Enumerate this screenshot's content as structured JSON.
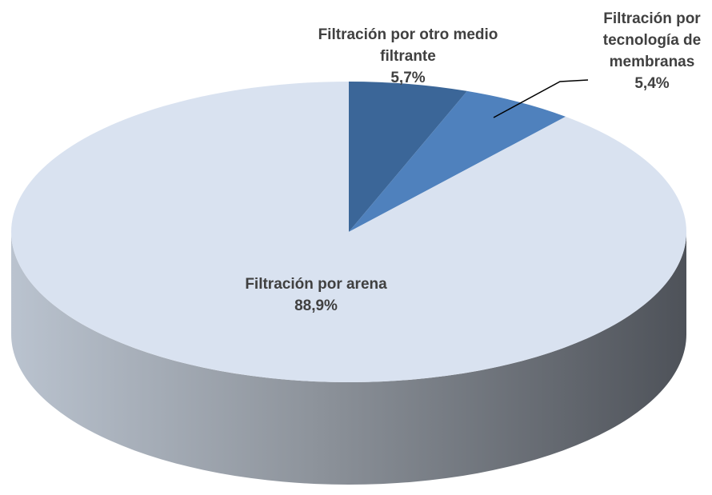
{
  "chart_data": {
    "type": "pie3d",
    "categories": [
      "Filtración por otro medio filtrante",
      "Filtración por tecnología de membranas",
      "Filtración por arena"
    ],
    "values": [
      5.7,
      5.4,
      88.9
    ],
    "value_labels": [
      "5,7%",
      "5,4%",
      "88,9%"
    ],
    "colors": [
      "#3b6698",
      "#4f81bd",
      "#d9e2f0"
    ]
  }
}
